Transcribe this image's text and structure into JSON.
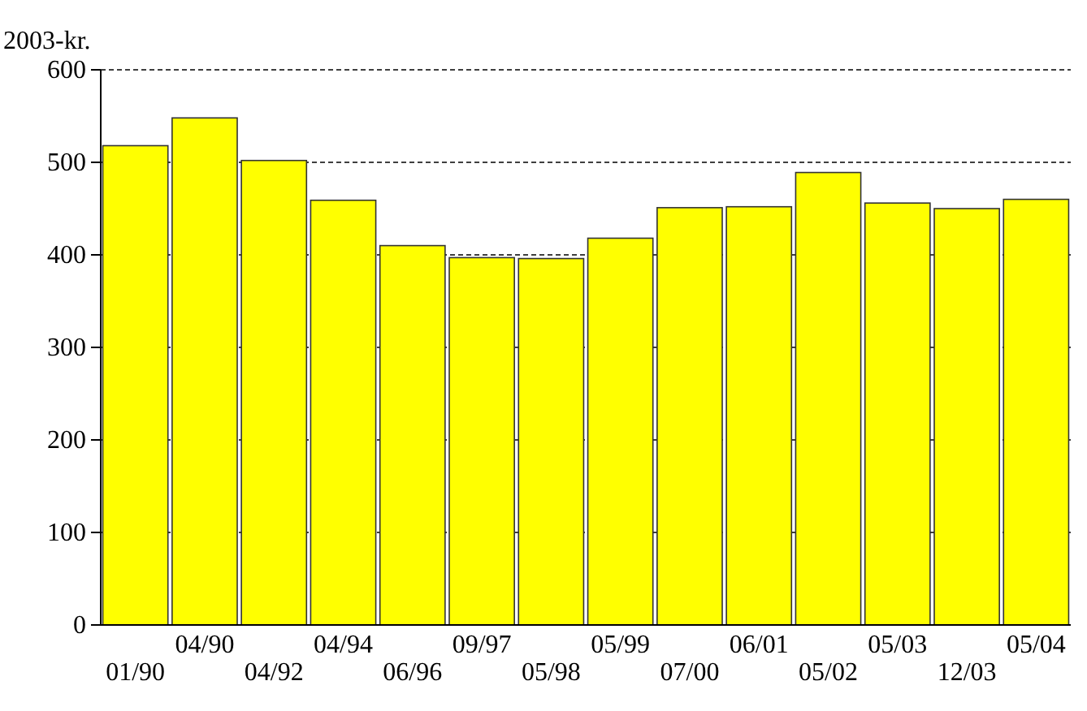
{
  "chart_data": {
    "type": "bar",
    "ylabel": "2003-kr.",
    "categories": [
      "01/90",
      "04/90",
      "04/92",
      "04/94",
      "06/96",
      "09/97",
      "05/98",
      "05/99",
      "07/00",
      "06/01",
      "05/02",
      "05/03",
      "12/03",
      "05/04"
    ],
    "values": [
      518,
      548,
      502,
      459,
      410,
      397,
      396,
      418,
      451,
      452,
      489,
      456,
      450,
      460
    ],
    "color": "#ffff00",
    "ylim": [
      0,
      600
    ],
    "yticks": [
      0,
      100,
      200,
      300,
      400,
      500,
      600
    ],
    "grid": "y"
  }
}
